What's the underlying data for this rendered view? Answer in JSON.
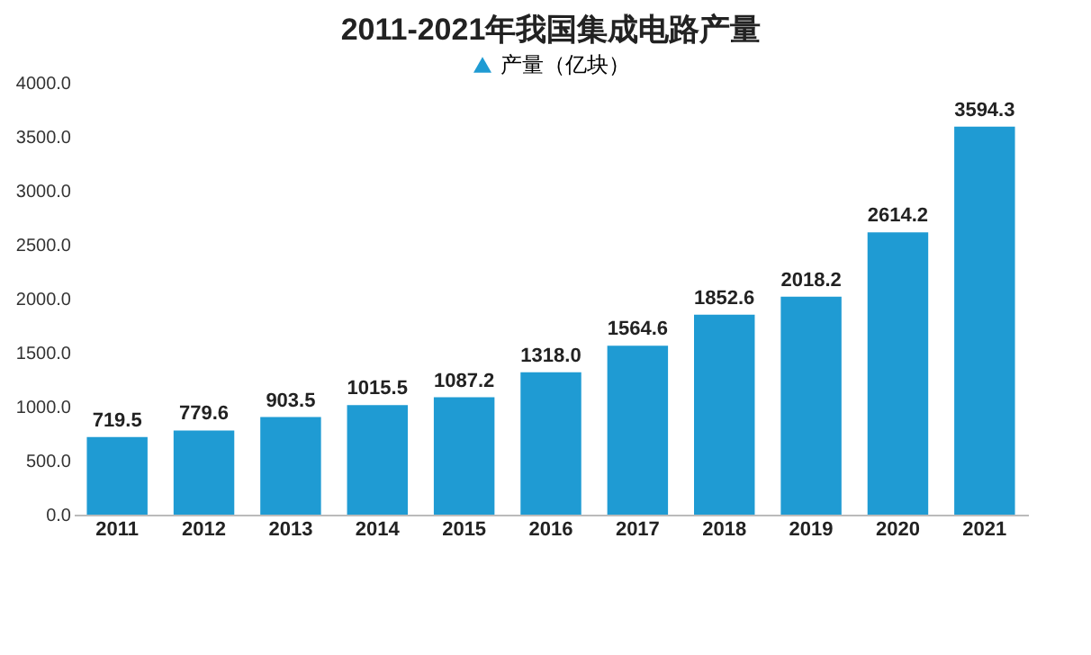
{
  "chart_data": {
    "type": "bar",
    "title": "2011-2021年我国集成电路产量",
    "categories": [
      "2011",
      "2012",
      "2013",
      "2014",
      "2015",
      "2016",
      "2017",
      "2018",
      "2019",
      "2020",
      "2021"
    ],
    "series": [
      {
        "name": "产量（亿块）",
        "color": "#1f9bd3",
        "values": [
          719.5,
          779.6,
          903.5,
          1015.5,
          1087.2,
          1318.0,
          1564.6,
          1852.6,
          2018.2,
          2614.2,
          3594.3
        ],
        "value_labels": [
          "719.5",
          "779.6",
          "903.5",
          "1015.5",
          "1087.2",
          "1318.0",
          "1564.6",
          "1852.6",
          "2018.2",
          "2614.2",
          "3594.3"
        ]
      }
    ],
    "ylim": [
      0,
      4000
    ],
    "yticks": [
      {
        "value": 0,
        "label": "0.0"
      },
      {
        "value": 500,
        "label": "500.0"
      },
      {
        "value": 1000,
        "label": "1000.0"
      },
      {
        "value": 1500,
        "label": "1500.0"
      },
      {
        "value": 2000,
        "label": "2000.0"
      },
      {
        "value": 2500,
        "label": "2500.0"
      },
      {
        "value": 3000,
        "label": "3000.0"
      },
      {
        "value": 3500,
        "label": "3500.0"
      },
      {
        "value": 4000,
        "label": "4000.0"
      }
    ],
    "legend": "top",
    "grid": false
  }
}
